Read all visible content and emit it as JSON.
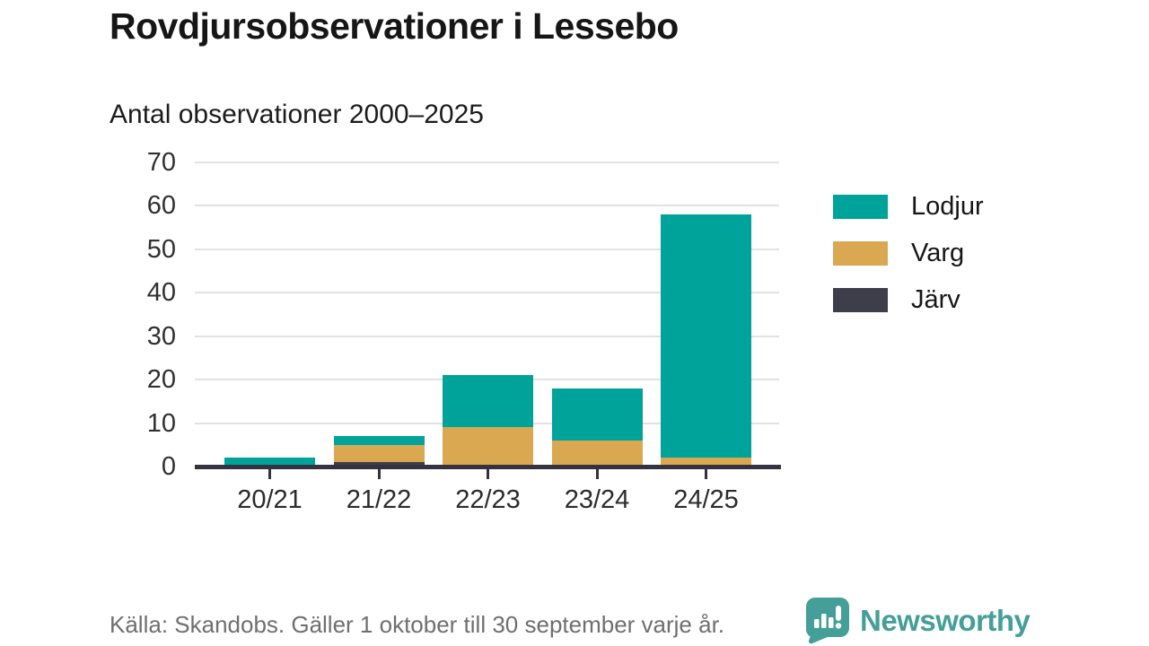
{
  "header": {
    "title": "Rovdjursobservationer i Lessebo",
    "subtitle": "Antal observationer 2000–2025"
  },
  "chart_data": {
    "type": "bar",
    "stacked": true,
    "title": "Rovdjursobservationer i Lessebo",
    "subtitle": "Antal observationer 2000–2025",
    "categories": [
      "20/21",
      "21/22",
      "22/23",
      "23/24",
      "24/25"
    ],
    "series": [
      {
        "name": "Lodjur",
        "color": "#00a39a",
        "values": [
          2,
          2,
          12,
          12,
          56
        ]
      },
      {
        "name": "Varg",
        "color": "#d9a850",
        "values": [
          0,
          4,
          9,
          6,
          2
        ]
      },
      {
        "name": "Järv",
        "color": "#3e3d4a",
        "values": [
          0,
          1,
          0,
          0,
          0
        ]
      }
    ],
    "stack_order_bottom_to_top": [
      "Järv",
      "Varg",
      "Lodjur"
    ],
    "totals": [
      2,
      7,
      21,
      18,
      58
    ],
    "xlabel": "",
    "ylabel": "Antal observationer",
    "y_ticks": [
      0,
      10,
      20,
      30,
      40,
      50,
      60,
      70
    ],
    "ylim": [
      0,
      70
    ],
    "grid": true,
    "legend_position": "right"
  },
  "footer": {
    "source": "Källa: Skandobs. Gäller 1 oktober till 30 september varje år.",
    "brand": "Newsworthy"
  },
  "colors": {
    "accent_teal": "#00a39a",
    "gold": "#d9a850",
    "dark_slate": "#3e3d4a",
    "axis": "#33323e",
    "gridline": "#e2e2e2",
    "logo_teal": "#459f99"
  }
}
